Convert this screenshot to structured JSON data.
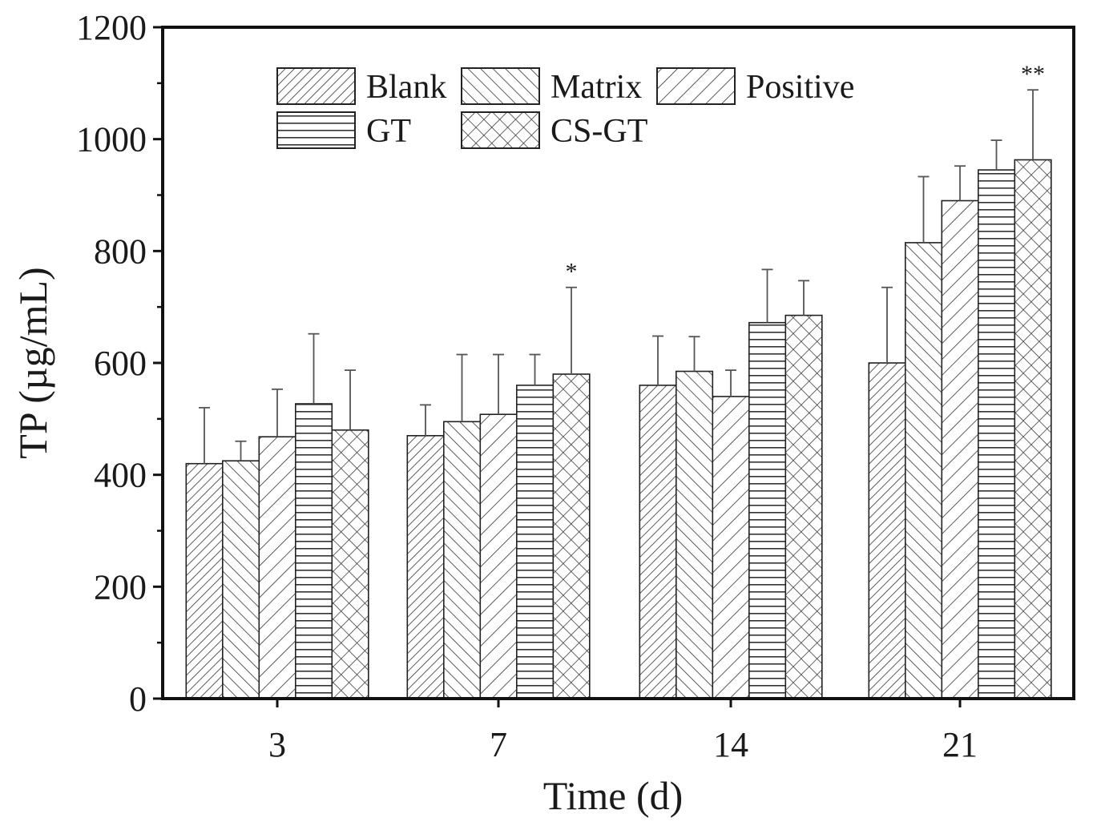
{
  "chart_data": {
    "type": "bar",
    "title": "",
    "xlabel": "Time (d)",
    "ylabel": "TP (µg/mL)",
    "ylim": [
      0,
      1200
    ],
    "yticks": [
      0,
      200,
      400,
      600,
      800,
      1000,
      1200
    ],
    "categories": [
      "3",
      "7",
      "14",
      "21"
    ],
    "series": [
      {
        "name": "Blank",
        "pattern": "diag-dense",
        "values": [
          420,
          470,
          560,
          600
        ],
        "errors": [
          100,
          55,
          88,
          135
        ]
      },
      {
        "name": "Matrix",
        "pattern": "back-diag",
        "values": [
          425,
          495,
          585,
          815
        ],
        "errors": [
          35,
          120,
          62,
          118
        ]
      },
      {
        "name": "Positive",
        "pattern": "fwd-diag",
        "values": [
          468,
          508,
          540,
          890
        ],
        "errors": [
          85,
          107,
          47,
          62
        ]
      },
      {
        "name": "GT",
        "pattern": "horizontal",
        "values": [
          527,
          560,
          672,
          945
        ],
        "errors": [
          125,
          55,
          95,
          53
        ]
      },
      {
        "name": "CS-GT",
        "pattern": "crosshatch",
        "values": [
          480,
          580,
          685,
          963
        ],
        "errors": [
          107,
          155,
          62,
          125
        ]
      }
    ],
    "annotations": [
      {
        "category": "7",
        "series": "CS-GT",
        "text": "*"
      },
      {
        "category": "21",
        "series": "CS-GT",
        "text": "**"
      }
    ],
    "legend": {
      "position": "top-left",
      "columns": 3
    },
    "grid": false
  }
}
